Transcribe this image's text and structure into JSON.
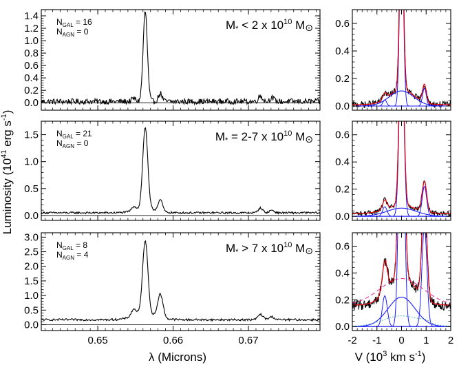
{
  "figure": {
    "ylabel_main": "Luminosity (10",
    "ylabel_exp": "41",
    "ylabel_unit": " erg s",
    "ylabel_unit_exp": "-1",
    "ylabel_close": ")",
    "xlabel_left": "λ (Microns)",
    "xlabel_right_pre": "V (10",
    "xlabel_right_exp": "3",
    "xlabel_right_post": " km s",
    "xlabel_right_exp2": "-1",
    "xlabel_right_close": ")"
  },
  "chart_data": [
    {
      "type": "line",
      "panel": "left-top",
      "xlim": [
        0.6425,
        0.6795
      ],
      "ylim": [
        -0.12,
        1.5
      ],
      "yticks": [
        "0.0",
        "0.2",
        "0.4",
        "0.6",
        "0.8",
        "1.0",
        "1.2",
        "1.4"
      ],
      "ytick_values": [
        0,
        0.2,
        0.4,
        0.6,
        0.8,
        1.0,
        1.2,
        1.4
      ],
      "xticks": [
        "0.65",
        "0.66",
        "0.67"
      ],
      "xtick_values": [
        0.65,
        0.66,
        0.67
      ],
      "show_xticklabels": false,
      "ngal_text": "N",
      "ngal_sub": "GAL",
      "ngal_val": " = 16",
      "nagn_text": "N",
      "nagn_sub": "AGN",
      "nagn_val": " =  0",
      "mass_pre": "M",
      "mass_star": "*",
      "mass_mid": " < 2 x 10",
      "mass_exp": "10",
      "mass_post": " M",
      "mass_sun": "⊙",
      "baseline": 0.02,
      "noise": 0.045,
      "lines": [
        {
          "center": 0.6563,
          "amp": 1.45,
          "sigma": 0.00028
        },
        {
          "center": 0.6583,
          "amp": 0.13,
          "sigma": 0.00025
        },
        {
          "center": 0.6548,
          "amp": 0.05,
          "sigma": 0.00025
        },
        {
          "center": 0.6716,
          "amp": 0.09,
          "sigma": 0.00028
        },
        {
          "center": 0.6731,
          "amp": 0.06,
          "sigma": 0.00028
        }
      ]
    },
    {
      "type": "line",
      "panel": "left-middle",
      "xlim": [
        0.6425,
        0.6795
      ],
      "ylim": [
        -0.09,
        1.75
      ],
      "yticks": [
        "0.0",
        "0.5",
        "1.0",
        "1.5"
      ],
      "ytick_values": [
        0,
        0.5,
        1.0,
        1.5
      ],
      "xticks": [
        "0.65",
        "0.66",
        "0.67"
      ],
      "xtick_values": [
        0.65,
        0.66,
        0.67
      ],
      "show_xticklabels": false,
      "ngal_text": "N",
      "ngal_sub": "GAL",
      "ngal_val": " = 21",
      "nagn_text": "N",
      "nagn_sub": "AGN",
      "nagn_val": " =  0",
      "mass_pre": "M",
      "mass_star": "*",
      "mass_mid": " = 2-7 x 10",
      "mass_exp": "10",
      "mass_post": " M",
      "mass_sun": "⊙",
      "baseline": 0.05,
      "noise": 0.018,
      "lines": [
        {
          "center": 0.6563,
          "amp": 1.52,
          "sigma": 0.00033
        },
        {
          "center": 0.6583,
          "amp": 0.22,
          "sigma": 0.0003
        },
        {
          "center": 0.6548,
          "amp": 0.08,
          "sigma": 0.0003
        },
        {
          "center": 0.6563,
          "amp": 0.07,
          "sigma": 0.0014
        },
        {
          "center": 0.6716,
          "amp": 0.09,
          "sigma": 0.0003
        },
        {
          "center": 0.6731,
          "amp": 0.05,
          "sigma": 0.0003
        }
      ]
    },
    {
      "type": "line",
      "panel": "left-bottom",
      "xlim": [
        0.6425,
        0.6795
      ],
      "ylim": [
        -0.2,
        3.15
      ],
      "yticks": [
        "0.0",
        "0.5",
        "1.0",
        "1.5",
        "2.0",
        "2.5",
        "3.0"
      ],
      "ytick_values": [
        0,
        0.5,
        1.0,
        1.5,
        2.0,
        2.5,
        3.0
      ],
      "xticks": [
        "0.65",
        "0.66",
        "0.67"
      ],
      "xtick_values": [
        0.65,
        0.66,
        0.67
      ],
      "show_xticklabels": true,
      "ngal_text": "N",
      "ngal_sub": "GAL",
      "ngal_val": " = 8",
      "nagn_text": "N",
      "nagn_sub": "AGN",
      "nagn_val": " = 4",
      "mass_pre": "M",
      "mass_star": "*",
      "mass_mid": " > 7 x 10",
      "mass_exp": "10",
      "mass_post": " M",
      "mass_sun": "⊙",
      "baseline": 0.17,
      "noise": 0.035,
      "lines": [
        {
          "center": 0.6563,
          "amp": 2.55,
          "sigma": 0.00035
        },
        {
          "center": 0.6583,
          "amp": 0.8,
          "sigma": 0.00035
        },
        {
          "center": 0.6548,
          "amp": 0.25,
          "sigma": 0.00035
        },
        {
          "center": 0.6563,
          "amp": 0.18,
          "sigma": 0.0016
        },
        {
          "center": 0.6716,
          "amp": 0.18,
          "sigma": 0.00035
        },
        {
          "center": 0.6731,
          "amp": 0.1,
          "sigma": 0.00035
        }
      ]
    },
    {
      "type": "line",
      "panel": "right-top",
      "xlim": [
        -2,
        2
      ],
      "ylim": [
        -0.03,
        0.7
      ],
      "yticks": [
        "0.0",
        "0.2",
        "0.4",
        "0.6"
      ],
      "ytick_values": [
        0,
        0.2,
        0.4,
        0.6
      ],
      "xticks": [
        "-2",
        "-1",
        "0",
        "1",
        "2"
      ],
      "xtick_values": [
        -2,
        -1,
        0,
        1,
        2
      ],
      "show_xticklabels": false,
      "baseline": 0.01,
      "noise": 0.012,
      "narrow_sigma": 0.075,
      "components": [
        {
          "center": 0.0,
          "amp": 1.4,
          "sigma": 0.075
        },
        {
          "center": 0.93,
          "amp": 0.13,
          "sigma": 0.075
        },
        {
          "center": -0.68,
          "amp": 0.045,
          "sigma": 0.075
        }
      ],
      "broad": {
        "center": 0.0,
        "amp": 0.11,
        "sigma": 0.5
      },
      "show_dashed": false
    },
    {
      "type": "line",
      "panel": "right-middle",
      "xlim": [
        -2,
        2
      ],
      "ylim": [
        -0.03,
        0.7
      ],
      "yticks": [
        "0.0",
        "0.2",
        "0.4",
        "0.6"
      ],
      "ytick_values": [
        0,
        0.2,
        0.4,
        0.6
      ],
      "xticks": [
        "-2",
        "-1",
        "0",
        "1",
        "2"
      ],
      "xtick_values": [
        -2,
        -1,
        0,
        1,
        2
      ],
      "show_xticklabels": false,
      "baseline": 0.02,
      "noise": 0.009,
      "components": [
        {
          "center": 0.0,
          "amp": 1.4,
          "sigma": 0.09
        },
        {
          "center": 0.93,
          "amp": 0.22,
          "sigma": 0.09
        },
        {
          "center": -0.68,
          "amp": 0.07,
          "sigma": 0.09
        }
      ],
      "broad": {
        "center": 0.0,
        "amp": 0.06,
        "sigma": 0.6
      },
      "show_dashed": false
    },
    {
      "type": "line",
      "panel": "right-bottom",
      "xlim": [
        -2,
        2
      ],
      "ylim": [
        -0.03,
        0.7
      ],
      "yticks": [
        "0.0",
        "0.2",
        "0.4",
        "0.6"
      ],
      "ytick_values": [
        0,
        0.2,
        0.4,
        0.6
      ],
      "xticks": [
        "-2",
        "-1",
        "0",
        "1",
        "2"
      ],
      "xtick_values": [
        -2,
        -1,
        0,
        1,
        2
      ],
      "show_xticklabels": true,
      "baseline": 0.16,
      "noise": 0.02,
      "components": [
        {
          "center": 0.0,
          "amp": 2.4,
          "sigma": 0.1
        },
        {
          "center": 0.93,
          "amp": 0.75,
          "sigma": 0.1
        },
        {
          "center": -0.68,
          "amp": 0.23,
          "sigma": 0.1
        }
      ],
      "broad": {
        "center": 0.0,
        "amp": 0.22,
        "sigma": 0.55
      },
      "show_dashed": true
    }
  ],
  "colors": {
    "data": "#000000",
    "fit": "#e8000b",
    "component": "#1a1aff",
    "dashed": "#e0219a",
    "dotted": "#1fa3b5"
  }
}
